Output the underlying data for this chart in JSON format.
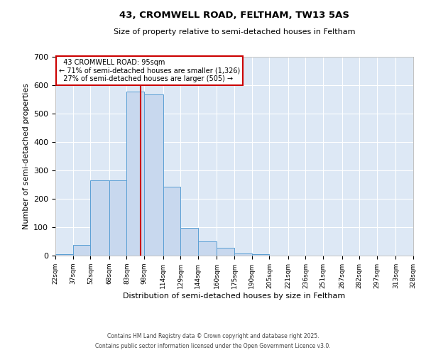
{
  "title_line1": "43, CROMWELL ROAD, FELTHAM, TW13 5AS",
  "title_line2": "Size of property relative to semi-detached houses in Feltham",
  "xlabel": "Distribution of semi-detached houses by size in Feltham",
  "ylabel": "Number of semi-detached properties",
  "bar_edges": [
    22,
    37,
    52,
    68,
    83,
    98,
    114,
    129,
    144,
    160,
    175,
    190,
    205,
    221,
    236,
    251,
    267,
    282,
    297,
    313,
    328
  ],
  "bar_heights": [
    5,
    38,
    265,
    265,
    578,
    568,
    243,
    97,
    50,
    28,
    7,
    5,
    0,
    0,
    0,
    0,
    0,
    0,
    0,
    0
  ],
  "bar_color": "#c8d8ee",
  "bar_edge_color": "#5a9fd4",
  "property_line_x": 95,
  "property_sqm": 95,
  "property_label": "43 CROMWELL ROAD: 95sqm",
  "pct_smaller": 71,
  "count_smaller": 1326,
  "pct_larger": 27,
  "count_larger": 505,
  "annotation_box_color": "#ffffff",
  "annotation_box_edge": "#cc0000",
  "vline_color": "#cc0000",
  "ylim": [
    0,
    700
  ],
  "yticks": [
    0,
    100,
    200,
    300,
    400,
    500,
    600,
    700
  ],
  "bg_color": "#dde8f5",
  "grid_color": "#ffffff",
  "fig_bg_color": "#ffffff",
  "footnote1": "Contains HM Land Registry data © Crown copyright and database right 2025.",
  "footnote2": "Contains public sector information licensed under the Open Government Licence v3.0."
}
